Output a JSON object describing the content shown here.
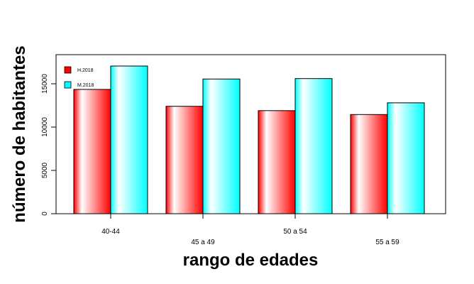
{
  "chart_data": {
    "type": "bar",
    "title": "",
    "xlabel": "rango de edades",
    "ylabel": "número de habitantes",
    "categories": [
      "40-44",
      "45 a 49",
      "50 a 54",
      "55 a 59"
    ],
    "series": [
      {
        "name": "H.2018",
        "values": [
          14350,
          12400,
          11900,
          11450
        ],
        "color": "#ff0000"
      },
      {
        "name": "M.2018",
        "values": [
          17050,
          15550,
          15600,
          12800
        ],
        "color": "#00ffff"
      }
    ],
    "ylim": [
      0,
      18500
    ],
    "yticks": [
      0,
      5000,
      10000,
      15000
    ],
    "grid": false,
    "legend_position": "top-left"
  }
}
